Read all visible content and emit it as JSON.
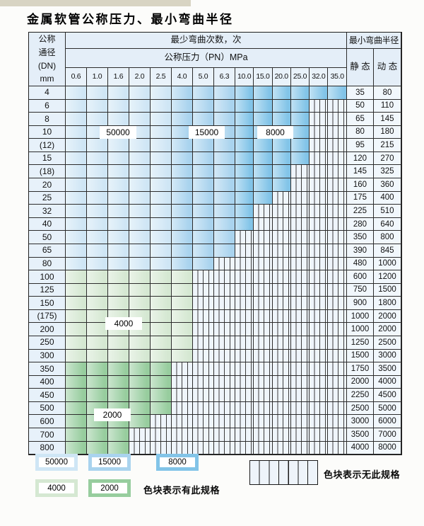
{
  "title": "金属软管公称压力、最小弯曲半径",
  "table": {
    "dn_header": "公称\n通径\n(DN)\nmm",
    "cycles_header": "最少弯曲次数，次",
    "pressure_header": "公称压力（PN）MPa",
    "radius_header": "最小弯曲半径",
    "static_label": "静 态",
    "dynamic_label": "动 态",
    "pressure_columns": [
      "0.6",
      "1.0",
      "1.6",
      "2.0",
      "2.5",
      "4.0",
      "5.0",
      "6.3",
      "10.0",
      "15.0",
      "20.0",
      "25.0",
      "32.0",
      "35.0"
    ],
    "blue_column_zones": [
      "50000",
      "50000",
      "50000",
      "50000",
      "50000",
      "15000",
      "15000",
      "15000",
      "8000",
      "8000",
      "8000",
      "8000",
      "8000",
      "8000"
    ],
    "rows": [
      {
        "dn": "4",
        "last": "35.0",
        "zone": "blue",
        "static": "35",
        "dynamic": "80"
      },
      {
        "dn": "6",
        "last": "25.0",
        "zone": "blue",
        "static": "50",
        "dynamic": "110"
      },
      {
        "dn": "8",
        "last": "25.0",
        "zone": "blue",
        "static": "65",
        "dynamic": "145"
      },
      {
        "dn": "10",
        "last": "25.0",
        "zone": "blue",
        "static": "80",
        "dynamic": "180"
      },
      {
        "dn": "(12)",
        "last": "25.0",
        "zone": "blue",
        "static": "95",
        "dynamic": "215"
      },
      {
        "dn": "15",
        "last": "25.0",
        "zone": "blue",
        "static": "120",
        "dynamic": "270"
      },
      {
        "dn": "(18)",
        "last": "20.0",
        "zone": "blue",
        "static": "145",
        "dynamic": "325"
      },
      {
        "dn": "20",
        "last": "20.0",
        "zone": "blue",
        "static": "160",
        "dynamic": "360"
      },
      {
        "dn": "25",
        "last": "15.0",
        "zone": "blue",
        "static": "175",
        "dynamic": "400"
      },
      {
        "dn": "32",
        "last": "10.0",
        "zone": "blue",
        "static": "225",
        "dynamic": "510"
      },
      {
        "dn": "40",
        "last": "10.0",
        "zone": "blue",
        "static": "280",
        "dynamic": "640"
      },
      {
        "dn": "50",
        "last": "6.3",
        "zone": "blue",
        "static": "350",
        "dynamic": "800"
      },
      {
        "dn": "65",
        "last": "6.3",
        "zone": "blue",
        "static": "390",
        "dynamic": "845"
      },
      {
        "dn": "80",
        "last": "5.0",
        "zone": "blue",
        "static": "480",
        "dynamic": "1000"
      },
      {
        "dn": "100",
        "last": "4.0",
        "zone": "4000",
        "static": "600",
        "dynamic": "1200"
      },
      {
        "dn": "125",
        "last": "4.0",
        "zone": "4000",
        "static": "750",
        "dynamic": "1500"
      },
      {
        "dn": "150",
        "last": "4.0",
        "zone": "4000",
        "static": "900",
        "dynamic": "1800"
      },
      {
        "dn": "(175)",
        "last": "4.0",
        "zone": "4000",
        "static": "1000",
        "dynamic": "2000"
      },
      {
        "dn": "200",
        "last": "4.0",
        "zone": "4000",
        "static": "1000",
        "dynamic": "2000"
      },
      {
        "dn": "250",
        "last": "4.0",
        "zone": "4000",
        "static": "1250",
        "dynamic": "2500"
      },
      {
        "dn": "300",
        "last": "4.0",
        "zone": "4000",
        "static": "1500",
        "dynamic": "3000"
      },
      {
        "dn": "350",
        "last": "2.5",
        "zone": "2000",
        "static": "1750",
        "dynamic": "3500"
      },
      {
        "dn": "400",
        "last": "2.5",
        "zone": "2000",
        "static": "2000",
        "dynamic": "4000"
      },
      {
        "dn": "450",
        "last": "2.5",
        "zone": "2000",
        "static": "2250",
        "dynamic": "4500"
      },
      {
        "dn": "500",
        "last": "2.5",
        "zone": "2000",
        "static": "2500",
        "dynamic": "5000"
      },
      {
        "dn": "600",
        "last": "2.0",
        "zone": "2000",
        "static": "3000",
        "dynamic": "6000"
      },
      {
        "dn": "700",
        "last": "1.6",
        "zone": "2000",
        "static": "3500",
        "dynamic": "7000"
      },
      {
        "dn": "800",
        "last": "1.6",
        "zone": "2000",
        "static": "4000",
        "dynamic": "8000"
      }
    ]
  },
  "overlays": {
    "b50000": "50000",
    "b15000": "15000",
    "b8000": "8000",
    "b4000": "4000",
    "b2000": "2000"
  },
  "legend": {
    "blocks": [
      {
        "label": "50000",
        "zone": "50000"
      },
      {
        "label": "15000",
        "zone": "15000"
      },
      {
        "label": "8000",
        "zone": "8000"
      },
      {
        "label": "4000",
        "zone": "4000"
      },
      {
        "label": "2000",
        "zone": "2000"
      }
    ],
    "has_spec_text": "色块表示有此规格",
    "no_spec_text": "色块表示无此规格"
  },
  "colors": {
    "cycles_50000": "#cfe6f5",
    "cycles_15000": "#a9d3ee",
    "cycles_8000": "#82c4e8",
    "cycles_4000": "#d5e8d2",
    "cycles_2000": "#97cd9e",
    "header_bg": "#e4eef8",
    "dn_column_bg": "#e7f1fa",
    "radius_value_bg": "#f1f7fc",
    "no_spec_bg": "#eff5fb",
    "border": "#2c2c2c"
  }
}
